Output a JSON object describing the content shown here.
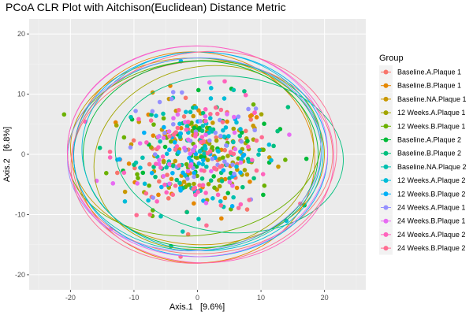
{
  "chart_data": {
    "type": "scatter",
    "title": "PCoA CLR Plot with Aitchison(Euclidean) Distance Metric",
    "xlabel": "Axis.1   [9.6%]",
    "ylabel": "Axis.2   [6.8%]",
    "xlim": [
      -26.5,
      26.5
    ],
    "ylim": [
      -22.5,
      22.5
    ],
    "xticks": [
      -20,
      -10,
      0,
      10,
      20
    ],
    "yticks": [
      -20,
      -10,
      0,
      10,
      20
    ],
    "grid": true,
    "background": "#ebebeb",
    "legend": {
      "title": "Group",
      "position": "right"
    },
    "point_count_per_group": 38,
    "series": [
      {
        "name": "Baseline.A.Plaque 1",
        "color": "#F8766D",
        "center": [
          0.5,
          -0.5
        ],
        "spread": [
          8.5,
          6.5
        ],
        "ellipse": {
          "cx": 0.8,
          "cy": -0.5,
          "rx": 20.5,
          "ry": 16.0,
          "angle": 3
        }
      },
      {
        "name": "Baseline.B.Plaque 1",
        "color": "#E58700",
        "center": [
          -0.5,
          -0.8
        ],
        "spread": [
          8.0,
          6.5
        ],
        "ellipse": {
          "cx": -0.5,
          "cy": -0.5,
          "rx": 19.0,
          "ry": 17.5,
          "angle": -5
        }
      },
      {
        "name": "Baseline.NA.Plaque 1",
        "color": "#C99800",
        "center": [
          0.0,
          0.5
        ],
        "spread": [
          8.0,
          6.0
        ],
        "ellipse": {
          "cx": 0.0,
          "cy": 0.5,
          "rx": 20.0,
          "ry": 15.5,
          "angle": -3
        }
      },
      {
        "name": "12 Weeks.A.Plaque 1",
        "color": "#A3A500",
        "center": [
          1.0,
          0.0
        ],
        "spread": [
          8.0,
          6.0
        ],
        "ellipse": {
          "cx": 1.0,
          "cy": -0.5,
          "rx": 17.5,
          "ry": 15.0,
          "angle": 15
        }
      },
      {
        "name": "12 Weeks.B.Plaque 1",
        "color": "#6BB100",
        "center": [
          -0.5,
          1.0
        ],
        "spread": [
          8.5,
          6.5
        ],
        "ellipse": {
          "cx": -0.5,
          "cy": 1.0,
          "rx": 20.0,
          "ry": 14.5,
          "angle": 6
        }
      },
      {
        "name": "Baseline.A.Plaque 2",
        "color": "#00BA38",
        "center": [
          0.5,
          0.5
        ],
        "spread": [
          8.0,
          6.0
        ],
        "ellipse": {
          "cx": 0.5,
          "cy": 0.0,
          "rx": 18.5,
          "ry": 15.5,
          "angle": 0
        }
      },
      {
        "name": "Baseline.B.Plaque 2",
        "color": "#00BF7D",
        "center": [
          2.0,
          0.0
        ],
        "spread": [
          8.0,
          6.0
        ],
        "ellipse": {
          "cx": 5.0,
          "cy": 0.0,
          "rx": 18.0,
          "ry": 13.0,
          "angle": -5
        }
      },
      {
        "name": "Baseline.NA.Plaque 2",
        "color": "#00C0AF",
        "center": [
          0.0,
          0.0
        ],
        "spread": [
          8.0,
          6.5
        ],
        "ellipse": {
          "cx": 0.0,
          "cy": 0.0,
          "rx": 19.5,
          "ry": 16.0,
          "angle": 2
        }
      },
      {
        "name": "12 Weeks.A.Plaque 2",
        "color": "#00BCD8",
        "center": [
          0.5,
          0.5
        ],
        "spread": [
          8.0,
          6.0
        ],
        "ellipse": {
          "cx": 0.8,
          "cy": 0.5,
          "rx": 19.0,
          "ry": 16.5,
          "angle": -3
        }
      },
      {
        "name": "12 Weeks.B.Plaque 2",
        "color": "#00B0F6",
        "center": [
          0.0,
          -0.5
        ],
        "spread": [
          8.0,
          6.5
        ],
        "ellipse": {
          "cx": 0.5,
          "cy": 0.0,
          "rx": 20.0,
          "ry": 17.0,
          "angle": 0
        }
      },
      {
        "name": "24 Weeks.A.Plaque 1",
        "color": "#9590FF",
        "center": [
          -1.0,
          0.0
        ],
        "spread": [
          8.5,
          6.5
        ],
        "ellipse": {
          "cx": -0.5,
          "cy": 0.0,
          "rx": 20.0,
          "ry": 16.0,
          "angle": 5
        }
      },
      {
        "name": "24 Weeks.B.Plaque 1",
        "color": "#E76BF3",
        "center": [
          0.0,
          0.0
        ],
        "spread": [
          8.0,
          6.5
        ],
        "ellipse": {
          "cx": 0.0,
          "cy": 0.5,
          "rx": 20.5,
          "ry": 17.5,
          "angle": 0
        }
      },
      {
        "name": "24 Weeks.A.Plaque 2",
        "color": "#FF62BC",
        "center": [
          0.5,
          0.5
        ],
        "spread": [
          8.5,
          6.5
        ],
        "ellipse": {
          "cx": 0.5,
          "cy": 0.0,
          "rx": 21.0,
          "ry": 18.0,
          "angle": -4
        }
      },
      {
        "name": "24 Weeks.B.Plaque 2",
        "color": "#FF6C91",
        "center": [
          1.0,
          0.0
        ],
        "spread": [
          8.5,
          6.5
        ],
        "ellipse": {
          "cx": 1.0,
          "cy": -0.5,
          "rx": 21.0,
          "ry": 17.5,
          "angle": 8
        }
      }
    ]
  }
}
